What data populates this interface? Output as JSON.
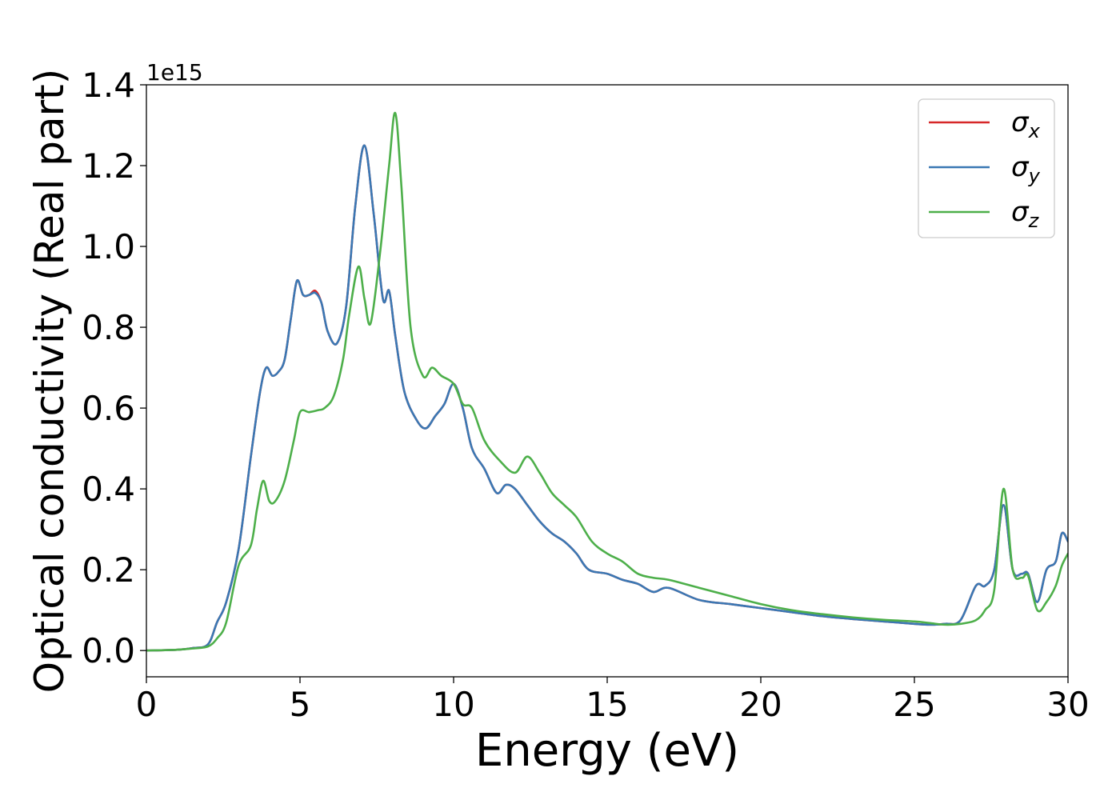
{
  "chart_data": {
    "type": "line",
    "title": "",
    "xlabel": "Energy (eV)",
    "ylabel": "Optical conductivity (Real part)",
    "y_offset_text": "1e15",
    "xlim": [
      0,
      30
    ],
    "ylim": [
      -0.065,
      1.4
    ],
    "y_scale_factor": 1000000000000000.0,
    "xticks": [
      0,
      5,
      10,
      15,
      20,
      25,
      30
    ],
    "yticks": [
      0.0,
      0.2,
      0.4,
      0.6,
      0.8,
      1.0,
      1.2,
      1.4
    ],
    "xtick_labels": [
      "0",
      "5",
      "10",
      "15",
      "20",
      "25",
      "30"
    ],
    "ytick_labels": [
      "0.0",
      "0.2",
      "0.4",
      "0.6",
      "0.8",
      "1.0",
      "1.2",
      "1.4"
    ],
    "grid": false,
    "legend_position": "top-right",
    "series": [
      {
        "name": "σx",
        "legend_base": "σ",
        "legend_sub": "x",
        "color": "#d62728",
        "x": [
          0,
          1,
          1.5,
          2,
          2.3,
          2.6,
          3,
          3.4,
          3.7,
          3.9,
          4.1,
          4.3,
          4.5,
          4.7,
          4.9,
          5.1,
          5.3,
          5.5,
          5.7,
          5.9,
          6.2,
          6.5,
          6.8,
          7.1,
          7.4,
          7.7,
          7.9,
          8.1,
          8.4,
          8.8,
          9.1,
          9.4,
          9.7,
          10,
          10.3,
          10.6,
          11,
          11.4,
          11.7,
          12,
          12.4,
          12.8,
          13.2,
          13.6,
          14,
          14.4,
          15,
          15.5,
          16,
          16.5,
          17,
          18,
          19,
          20,
          21,
          22,
          23,
          24,
          25,
          25.5,
          26,
          26.5,
          27,
          27.3,
          27.6,
          27.9,
          28.2,
          28.5,
          28.7,
          29,
          29.3,
          29.6,
          29.8,
          30
        ],
        "y": [
          0,
          0.002,
          0.006,
          0.015,
          0.07,
          0.12,
          0.25,
          0.48,
          0.64,
          0.7,
          0.68,
          0.69,
          0.72,
          0.82,
          0.915,
          0.88,
          0.88,
          0.89,
          0.86,
          0.79,
          0.76,
          0.85,
          1.1,
          1.25,
          1.08,
          0.87,
          0.89,
          0.78,
          0.64,
          0.57,
          0.55,
          0.58,
          0.61,
          0.66,
          0.6,
          0.5,
          0.45,
          0.39,
          0.41,
          0.4,
          0.36,
          0.32,
          0.29,
          0.27,
          0.24,
          0.2,
          0.19,
          0.175,
          0.165,
          0.145,
          0.155,
          0.125,
          0.115,
          0.105,
          0.095,
          0.085,
          0.078,
          0.072,
          0.066,
          0.064,
          0.066,
          0.075,
          0.16,
          0.16,
          0.2,
          0.36,
          0.2,
          0.19,
          0.19,
          0.12,
          0.2,
          0.22,
          0.29,
          0.27
        ]
      },
      {
        "name": "σy",
        "legend_base": "σ",
        "legend_sub": "y",
        "color": "#3a78b4",
        "x": [
          0,
          1,
          1.5,
          2,
          2.3,
          2.6,
          3,
          3.4,
          3.7,
          3.9,
          4.1,
          4.3,
          4.5,
          4.7,
          4.9,
          5.1,
          5.3,
          5.5,
          5.7,
          5.9,
          6.2,
          6.5,
          6.8,
          7.1,
          7.4,
          7.7,
          7.9,
          8.1,
          8.4,
          8.8,
          9.1,
          9.4,
          9.7,
          10,
          10.3,
          10.6,
          11,
          11.4,
          11.7,
          12,
          12.4,
          12.8,
          13.2,
          13.6,
          14,
          14.4,
          15,
          15.5,
          16,
          16.5,
          17,
          18,
          19,
          20,
          21,
          22,
          23,
          24,
          25,
          25.5,
          26,
          26.5,
          27,
          27.3,
          27.6,
          27.9,
          28.2,
          28.5,
          28.7,
          29,
          29.3,
          29.6,
          29.8,
          30
        ],
        "y": [
          0,
          0.002,
          0.006,
          0.015,
          0.07,
          0.12,
          0.25,
          0.48,
          0.64,
          0.7,
          0.68,
          0.69,
          0.72,
          0.82,
          0.915,
          0.88,
          0.88,
          0.885,
          0.86,
          0.79,
          0.76,
          0.85,
          1.1,
          1.25,
          1.08,
          0.87,
          0.89,
          0.78,
          0.64,
          0.57,
          0.55,
          0.58,
          0.61,
          0.66,
          0.6,
          0.5,
          0.45,
          0.39,
          0.41,
          0.4,
          0.36,
          0.32,
          0.29,
          0.27,
          0.24,
          0.2,
          0.19,
          0.175,
          0.165,
          0.145,
          0.155,
          0.125,
          0.115,
          0.105,
          0.095,
          0.085,
          0.078,
          0.072,
          0.066,
          0.064,
          0.066,
          0.075,
          0.16,
          0.16,
          0.2,
          0.36,
          0.2,
          0.19,
          0.19,
          0.12,
          0.2,
          0.22,
          0.29,
          0.27
        ]
      },
      {
        "name": "σz",
        "legend_base": "σ",
        "legend_sub": "z",
        "color": "#4daf4a",
        "x": [
          0,
          1,
          1.5,
          2,
          2.3,
          2.6,
          3,
          3.4,
          3.6,
          3.8,
          4,
          4.2,
          4.5,
          4.8,
          5,
          5.3,
          5.6,
          5.8,
          6.1,
          6.4,
          6.6,
          6.9,
          7.1,
          7.3,
          7.6,
          7.9,
          8.1,
          8.3,
          8.6,
          9,
          9.3,
          9.6,
          10,
          10.3,
          10.6,
          11,
          11.5,
          12,
          12.4,
          12.8,
          13.2,
          13.6,
          14,
          14.5,
          15,
          15.5,
          16,
          16.5,
          17,
          18,
          19,
          20,
          21,
          22,
          23,
          24,
          25,
          25.5,
          26,
          26.5,
          27,
          27.3,
          27.6,
          27.9,
          28.2,
          28.5,
          28.7,
          29,
          29.3,
          29.6,
          29.8,
          30
        ],
        "y": [
          0,
          0.002,
          0.005,
          0.01,
          0.03,
          0.07,
          0.21,
          0.26,
          0.35,
          0.42,
          0.37,
          0.37,
          0.42,
          0.52,
          0.59,
          0.59,
          0.595,
          0.6,
          0.63,
          0.72,
          0.83,
          0.95,
          0.87,
          0.81,
          0.98,
          1.2,
          1.33,
          1.15,
          0.8,
          0.68,
          0.7,
          0.68,
          0.66,
          0.61,
          0.6,
          0.52,
          0.47,
          0.44,
          0.48,
          0.44,
          0.39,
          0.36,
          0.33,
          0.27,
          0.24,
          0.22,
          0.19,
          0.18,
          0.175,
          0.155,
          0.135,
          0.115,
          0.1,
          0.09,
          0.082,
          0.076,
          0.072,
          0.068,
          0.064,
          0.066,
          0.075,
          0.1,
          0.15,
          0.4,
          0.2,
          0.18,
          0.185,
          0.1,
          0.12,
          0.16,
          0.21,
          0.24
        ]
      }
    ]
  }
}
